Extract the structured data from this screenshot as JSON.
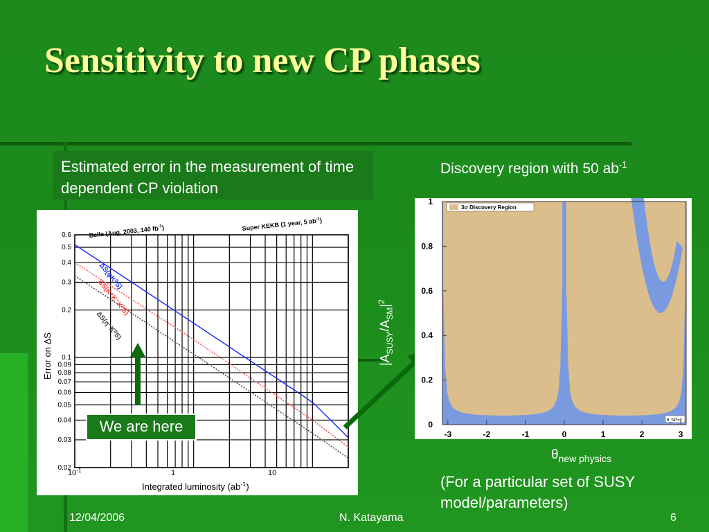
{
  "slide": {
    "title": "Sensitivity to new CP phases",
    "left_caption": "Estimated error in the measurement of time dependent CP violation",
    "right_caption": "Discovery region with 50 ab",
    "right_caption_sup": "-1",
    "callout": "We are here",
    "theta_symbol": "θ",
    "theta_sub": "new physics",
    "note": "(For a particular set of SUSY model/parameters)",
    "footer": {
      "date": "12/04/2006",
      "author": "N. Katayama",
      "page": "6"
    },
    "colors": {
      "title": "#ffff99",
      "background": "#1b8a1b",
      "arrow": "#0b6a0b"
    }
  },
  "left_plot": {
    "header_left": "Belle (Aug. 2003, 140 fb",
    "header_left_sup": "-1",
    "header_left_end": ")",
    "header_right": "Super KEKB (1 year, 5 ab",
    "header_right_sup": "-1",
    "header_right_end": ")",
    "ylabel": "Error on ΔS",
    "xlabel": "Integrated luminosity (ab",
    "xlabel_sup": "-1",
    "xlabel_end": ")",
    "x_ticks": [
      "10",
      "1",
      "10"
    ],
    "x_tick_first_sup": "-1",
    "y_ticks": [
      "0.6",
      "0.5",
      "0.4",
      "0.3",
      "0.2",
      "0.1",
      "0.09",
      "0.08",
      "0.07",
      "0.06",
      "0.05",
      "0.04",
      "0.03",
      "0.02"
    ],
    "series": [
      {
        "name": "ΔS(φK⁰S)",
        "color": "#2030ff",
        "style": "solid"
      },
      {
        "name": "ΔS(K⁺K⁻K⁰S)",
        "color": "#ff4040",
        "style": "dotted"
      },
      {
        "name": "ΔS(η' K⁰S)",
        "color": "#404040",
        "style": "dotted"
      }
    ]
  },
  "chart_data": [
    {
      "type": "line",
      "xlabel": "Integrated luminosity (ab-1)",
      "ylabel": "Error on ΔS",
      "xscale": "log",
      "yscale": "log",
      "xlim": [
        0.1,
        20
      ],
      "ylim": [
        0.02,
        0.6
      ],
      "series": [
        {
          "name": "ΔS(φK⁰S)",
          "x": [
            0.1,
            1,
            10,
            20
          ],
          "y": [
            0.52,
            0.165,
            0.052,
            0.031
          ]
        },
        {
          "name": "ΔS(K⁺K⁻K⁰S)",
          "x": [
            0.1,
            1,
            10,
            20
          ],
          "y": [
            0.4,
            0.13,
            0.04,
            0.027
          ]
        },
        {
          "name": "ΔS(η' K⁰S)",
          "x": [
            0.1,
            1,
            10,
            20
          ],
          "y": [
            0.33,
            0.105,
            0.033,
            0.023
          ]
        }
      ]
    },
    {
      "type": "area",
      "legend": "3σ Discovery Region",
      "ylabel": "|A",
      "ylabel_sub1": "SUSY",
      "ylabel_mid": "/A",
      "ylabel_sub2": "SM",
      "ylabel_end": "|",
      "ylabel_sup": "2",
      "xlabel": "θ new physics",
      "xlim": [
        -3.14,
        3.14
      ],
      "ylim": [
        0,
        1
      ],
      "x_ticks": [
        "-3",
        "-2",
        "-1",
        "0",
        "1",
        "2",
        "3"
      ],
      "y_ticks": [
        "0",
        "0.2",
        "0.4",
        "0.6",
        "0.8",
        "1"
      ],
      "corner_label": "θ_NP=0",
      "colors": {
        "region": "#dcbe8c",
        "outside": "#7a9ae0"
      }
    }
  ]
}
